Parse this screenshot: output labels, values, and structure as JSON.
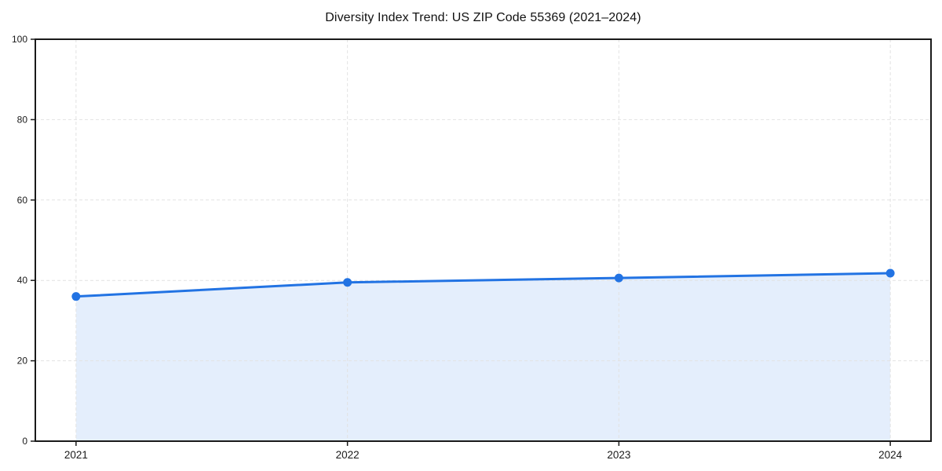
{
  "chart_data": {
    "type": "line",
    "title": "Diversity Index Trend: US ZIP Code 55369 (2021–2024)",
    "categories": [
      "2021",
      "2022",
      "2023",
      "2024"
    ],
    "x": [
      2021,
      2022,
      2023,
      2024
    ],
    "series": [
      {
        "name": "Diversity Index",
        "values": [
          36.0,
          39.5,
          40.6,
          41.8
        ]
      }
    ],
    "values": [
      36.0,
      39.5,
      40.6,
      41.8
    ],
    "xlabel": "",
    "ylabel": "",
    "xlim": [
      2020.85,
      2024.15
    ],
    "ylim": [
      0,
      100
    ],
    "yticks": [
      0,
      20,
      40,
      60,
      80,
      100
    ],
    "xticks": [
      2021,
      2022,
      2023,
      2024
    ],
    "grid": true,
    "grid_style": "dashed",
    "area_fill": true,
    "legend": "none",
    "marker": "circle",
    "colors": {
      "line": "#2273e3",
      "marker": "#2273e3",
      "fill": "rgba(34,115,227,0.12)",
      "grid": "#e2e2e2",
      "axis": "#1a1a1a",
      "title_text": "#111111",
      "tick_text": "#1a1a1a",
      "background": "#ffffff"
    }
  }
}
